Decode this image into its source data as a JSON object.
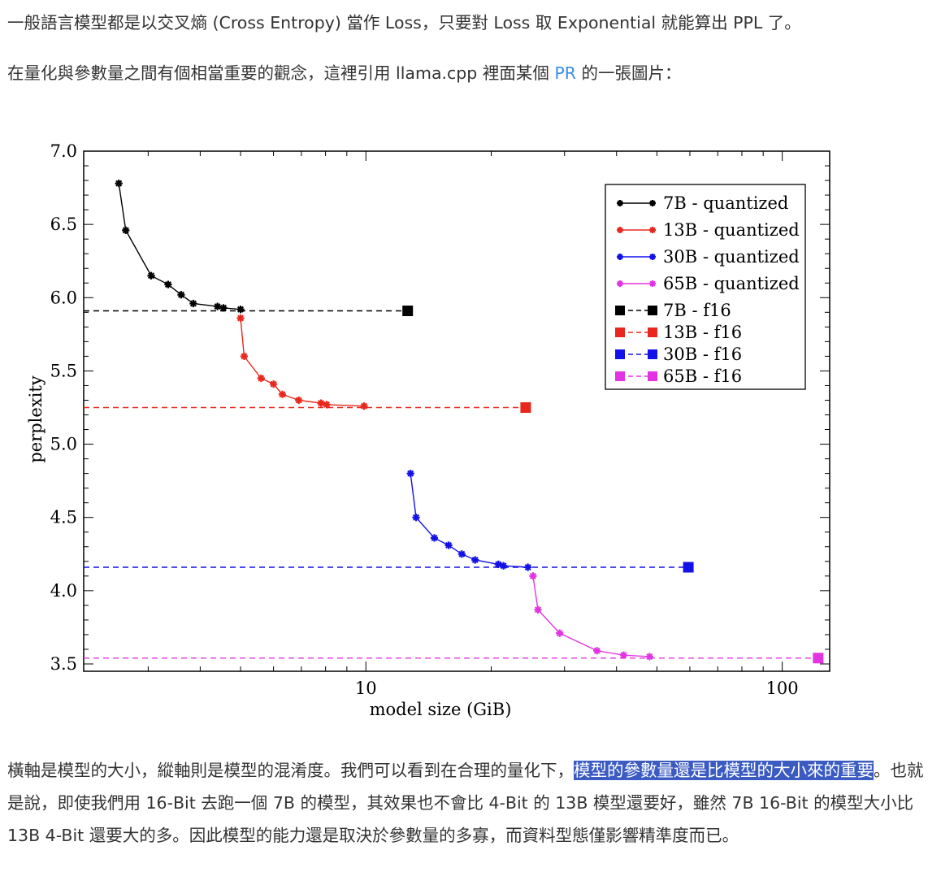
{
  "article": {
    "p1": "一般語言模型都是以交叉熵 (Cross Entropy) 當作 Loss，只要對 Loss 取 Exponential 就能算出 PPL 了。",
    "p2_before": "在量化與參數量之間有個相當重要的觀念，這裡引用 llama.cpp 裡面某個 ",
    "p2_link": "PR",
    "p2_after": " 的一張圖片：",
    "p3_before": "橫軸是模型的大小，縱軸則是模型的混淆度。我們可以看到在合理的量化下，",
    "p3_highlight": "模型的參數量還是比模型的大小來的重要",
    "p3_after": "。也就是說，即使我們用 16-Bit 去跑一個 7B 的模型，其效果也不會比 4-Bit 的 13B 模型還要好，雖然 7B 16-Bit 的模型大小比 13B 4-Bit 還要大的多。因此模型的能力還是取決於參數量的多寡，而資料型態僅影響精準度而已。"
  },
  "chart_data": {
    "type": "line",
    "xlabel": "model size (GiB)",
    "ylabel": "perplexity",
    "xscale": "log",
    "xlim": [
      2.1,
      130
    ],
    "ylim": [
      3.45,
      7.0
    ],
    "xticks": [
      10,
      100
    ],
    "yticks": [
      3.5,
      4.0,
      4.5,
      5.0,
      5.5,
      6.0,
      6.5,
      7.0
    ],
    "legend_position": "top-right",
    "series": [
      {
        "name": "7B - quantized",
        "color": "#000000",
        "x": [
          2.55,
          2.65,
          3.05,
          3.35,
          3.6,
          3.85,
          4.4,
          4.55,
          5.0
        ],
        "y": [
          6.78,
          6.46,
          6.15,
          6.09,
          6.02,
          5.96,
          5.94,
          5.93,
          5.92
        ]
      },
      {
        "name": "13B - quantized",
        "color": "#e8281e",
        "x": [
          5.0,
          5.1,
          5.6,
          6.0,
          6.3,
          6.9,
          7.8,
          8.05,
          9.9
        ],
        "y": [
          5.86,
          5.6,
          5.45,
          5.41,
          5.34,
          5.3,
          5.28,
          5.27,
          5.26
        ]
      },
      {
        "name": "30B - quantized",
        "color": "#1212e8",
        "x": [
          12.8,
          13.2,
          14.6,
          15.8,
          17.0,
          18.3,
          20.8,
          21.4,
          24.5
        ],
        "y": [
          4.8,
          4.5,
          4.36,
          4.31,
          4.25,
          4.21,
          4.18,
          4.17,
          4.16
        ]
      },
      {
        "name": "65B - quantized",
        "color": "#e234e2",
        "x": [
          25.2,
          25.9,
          29.2,
          35.9,
          41.6,
          48.0
        ],
        "y": [
          4.1,
          3.87,
          3.71,
          3.59,
          3.56,
          3.55
        ]
      },
      {
        "name": "7B - f16",
        "color": "#000000",
        "dashed": true,
        "x": [
          2.1,
          12.6
        ],
        "y": [
          5.91,
          5.91
        ]
      },
      {
        "name": "13B - f16",
        "color": "#e8281e",
        "dashed": true,
        "x": [
          2.1,
          24.2
        ],
        "y": [
          5.25,
          5.25
        ]
      },
      {
        "name": "30B - f16",
        "color": "#1212e8",
        "dashed": true,
        "x": [
          2.1,
          59.5
        ],
        "y": [
          4.16,
          4.16
        ]
      },
      {
        "name": "65B - f16",
        "color": "#e234e2",
        "dashed": true,
        "x": [
          2.1,
          122
        ],
        "y": [
          3.54,
          3.54
        ]
      }
    ]
  }
}
